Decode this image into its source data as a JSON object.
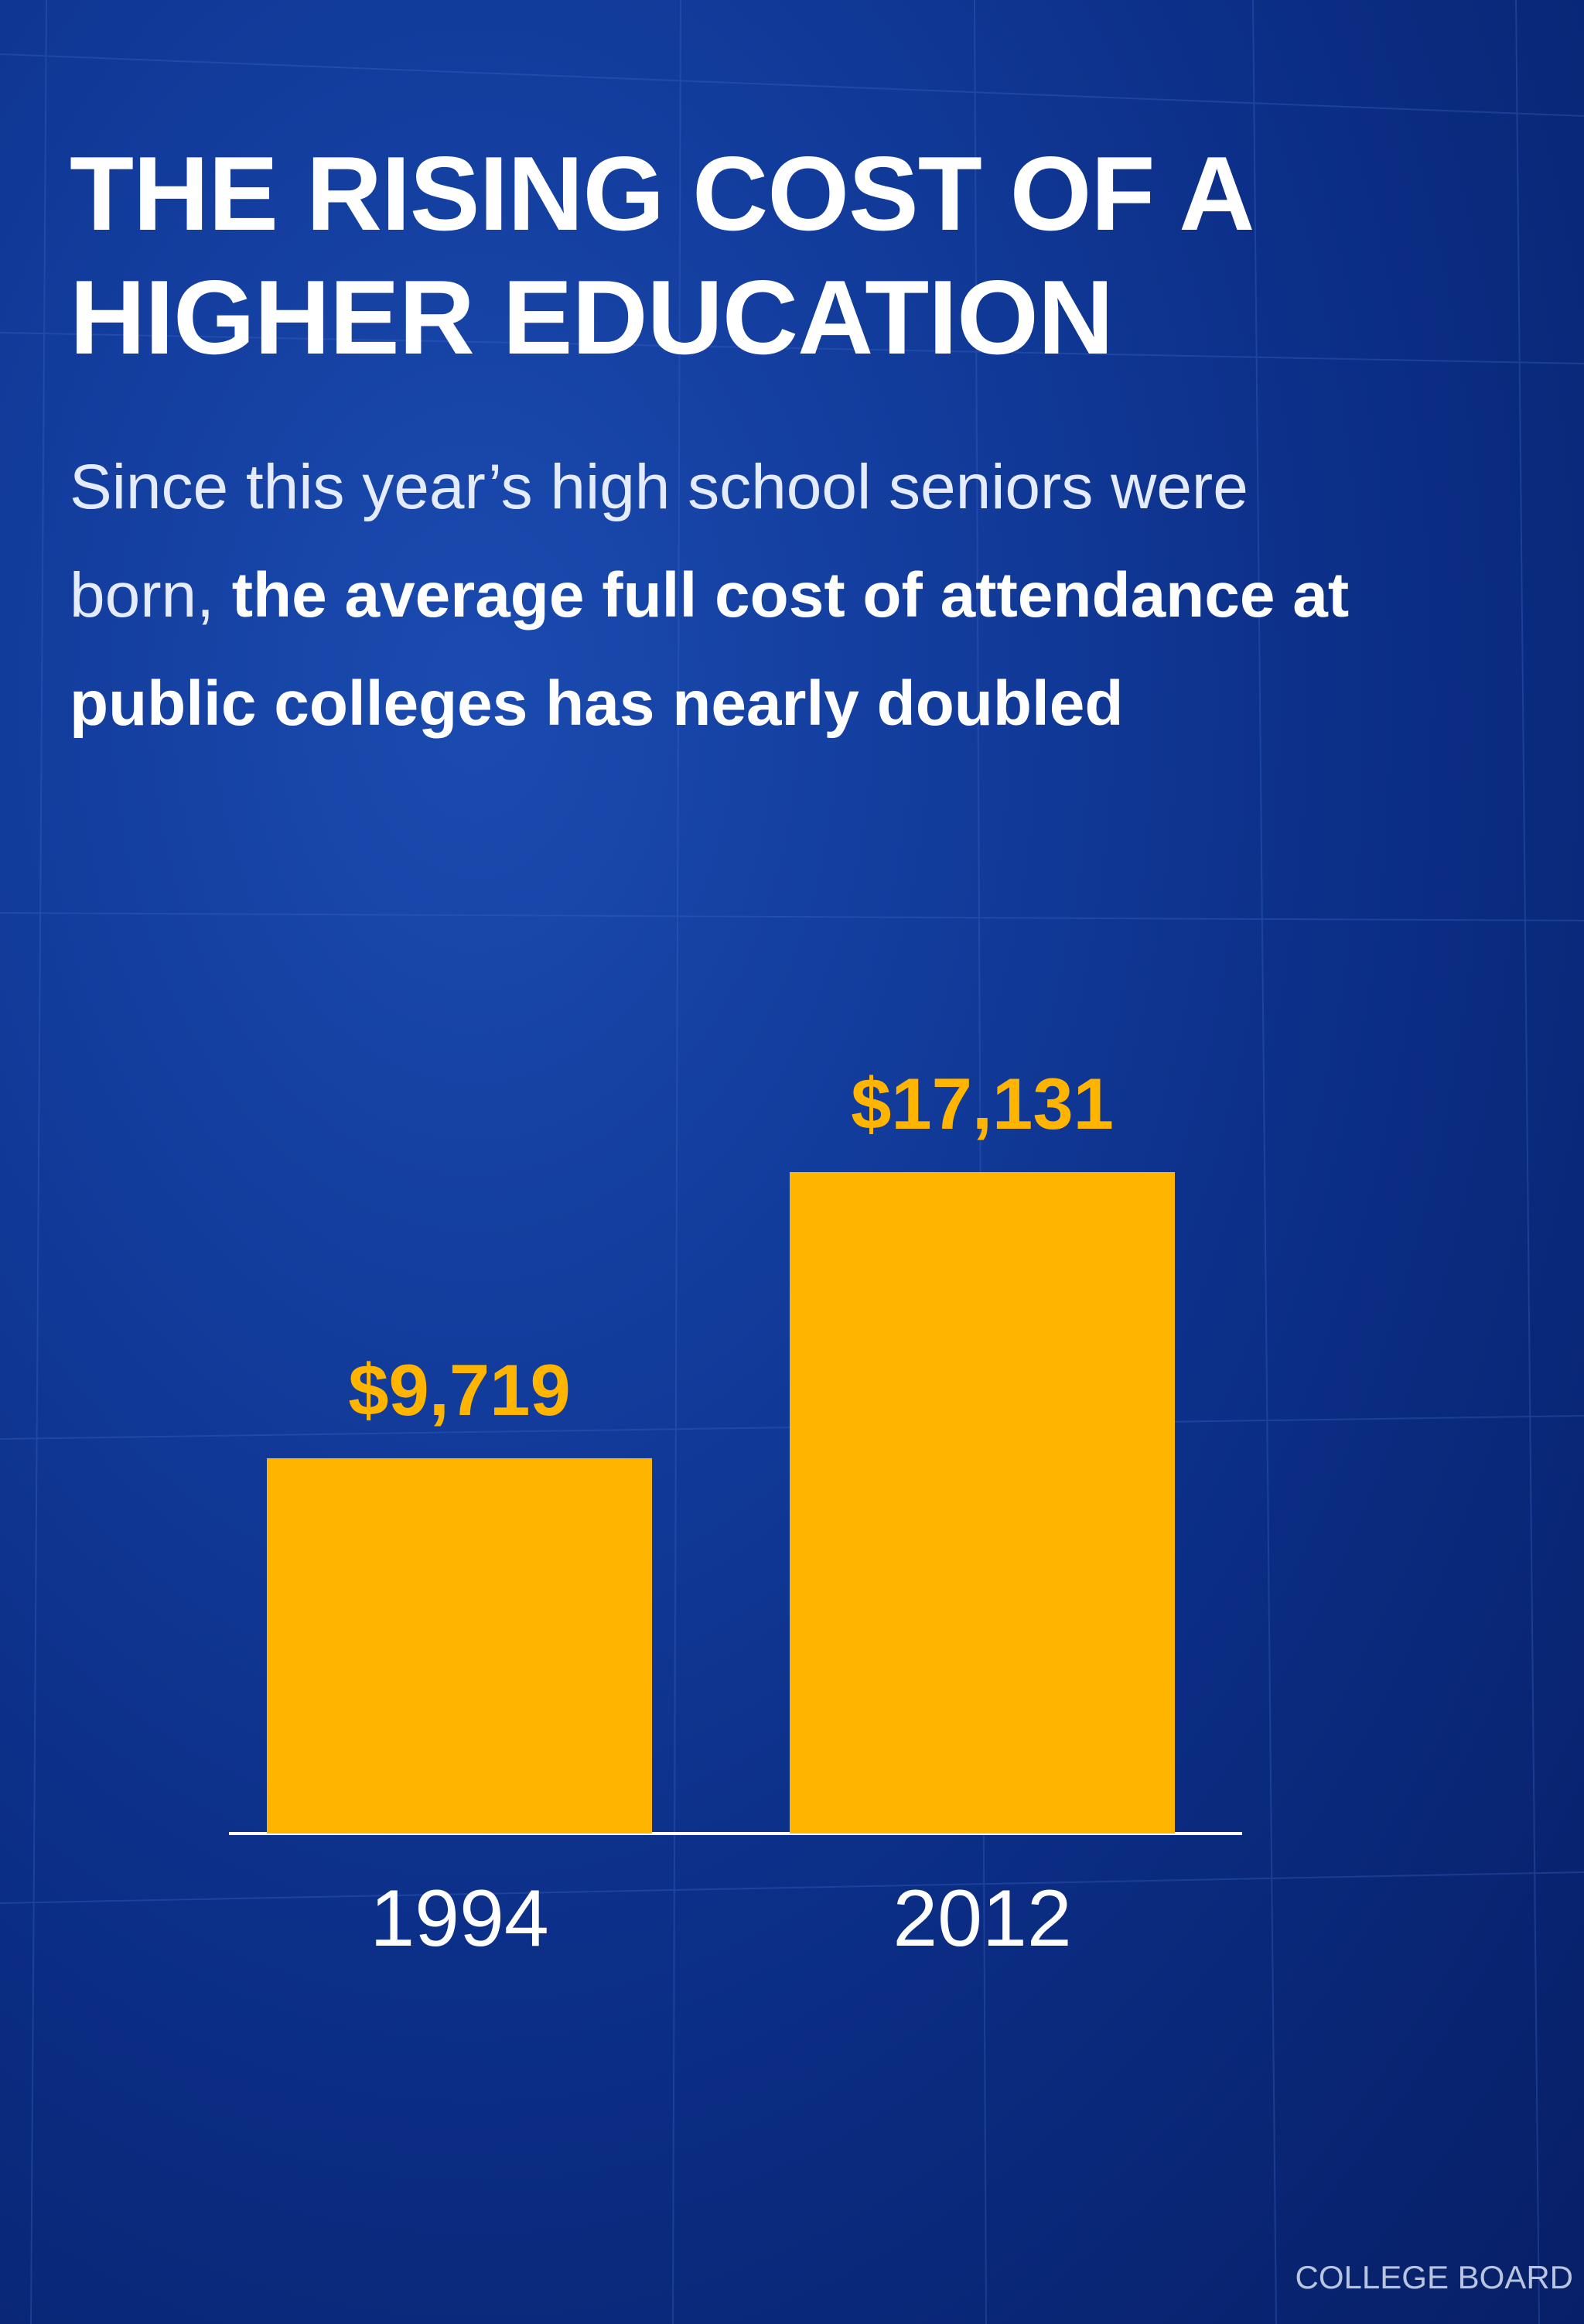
{
  "title": "THE RISING COST OF A HIGHER EDUCATION",
  "subtitle": {
    "plain": "Since this year’s high school seniors were born, ",
    "emphasis": "the average full cost of attendance at public colleges has nearly doubled"
  },
  "source": "COLLEGE BOARD",
  "colors": {
    "bar": "#ffb400",
    "value_label": "#ffb400",
    "axis": "#ffffff",
    "category_label": "#ffffff"
  },
  "chart_data": {
    "type": "bar",
    "title": "THE RISING COST OF A HIGHER EDUCATION",
    "categories": [
      "1994",
      "2012"
    ],
    "values": [
      9719,
      17131
    ],
    "value_labels": [
      "$9,719",
      "$17,131"
    ],
    "xlabel": "",
    "ylabel": "",
    "ylim": [
      0,
      20000
    ],
    "grid": false,
    "legend": "none"
  }
}
